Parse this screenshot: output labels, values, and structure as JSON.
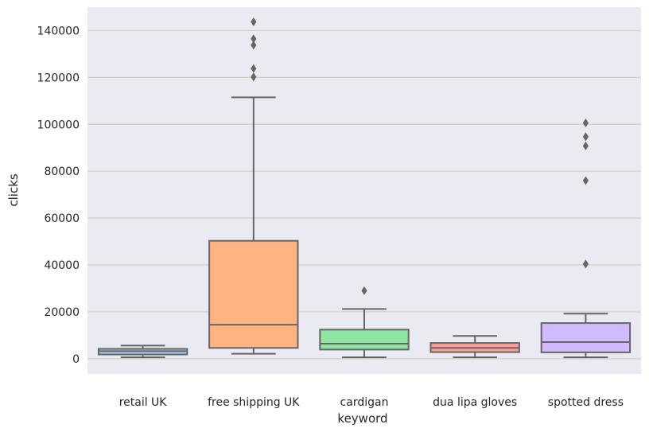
{
  "chart_data": {
    "type": "box",
    "xlabel": "keyword",
    "ylabel": "clicks",
    "ylim": [
      -6500,
      150000
    ],
    "yticks": [
      0,
      20000,
      40000,
      60000,
      80000,
      100000,
      120000,
      140000
    ],
    "ytick_labels": [
      "0",
      "20000",
      "40000",
      "60000",
      "80000",
      "100000",
      "120000",
      "140000"
    ],
    "grid": "horizontal",
    "background": "#eaeaf2",
    "categories": [
      "retail UK",
      "free shipping UK",
      "cardigan",
      "dua lipa gloves",
      "spotted dress"
    ],
    "boxes": [
      {
        "category": "retail UK",
        "color": "#a1c9f4",
        "whisker_low": 600,
        "q1": 1800,
        "median": 3200,
        "q3": 4200,
        "whisker_high": 5600,
        "outliers": []
      },
      {
        "category": "free shipping UK",
        "color": "#ffb482",
        "whisker_low": 2100,
        "q1": 4600,
        "median": 14500,
        "q3": 50300,
        "whisker_high": 111500,
        "outliers": [
          120200,
          123800,
          133800,
          136500,
          143700
        ]
      },
      {
        "category": "cardigan",
        "color": "#8de5a1",
        "whisker_low": 600,
        "q1": 3900,
        "median": 6400,
        "q3": 12400,
        "whisker_high": 21200,
        "outliers": [
          29000
        ]
      },
      {
        "category": "dua lipa gloves",
        "color": "#ff9f9b",
        "whisker_low": 600,
        "q1": 2800,
        "median": 4600,
        "q3": 6700,
        "whisker_high": 9700,
        "outliers": []
      },
      {
        "category": "spotted dress",
        "color": "#d0bbff",
        "whisker_low": 600,
        "q1": 2700,
        "median": 7100,
        "q3": 15200,
        "whisker_high": 19200,
        "outliers": [
          40400,
          76000,
          90800,
          94700,
          100600
        ]
      }
    ],
    "line_color": "#666666"
  }
}
